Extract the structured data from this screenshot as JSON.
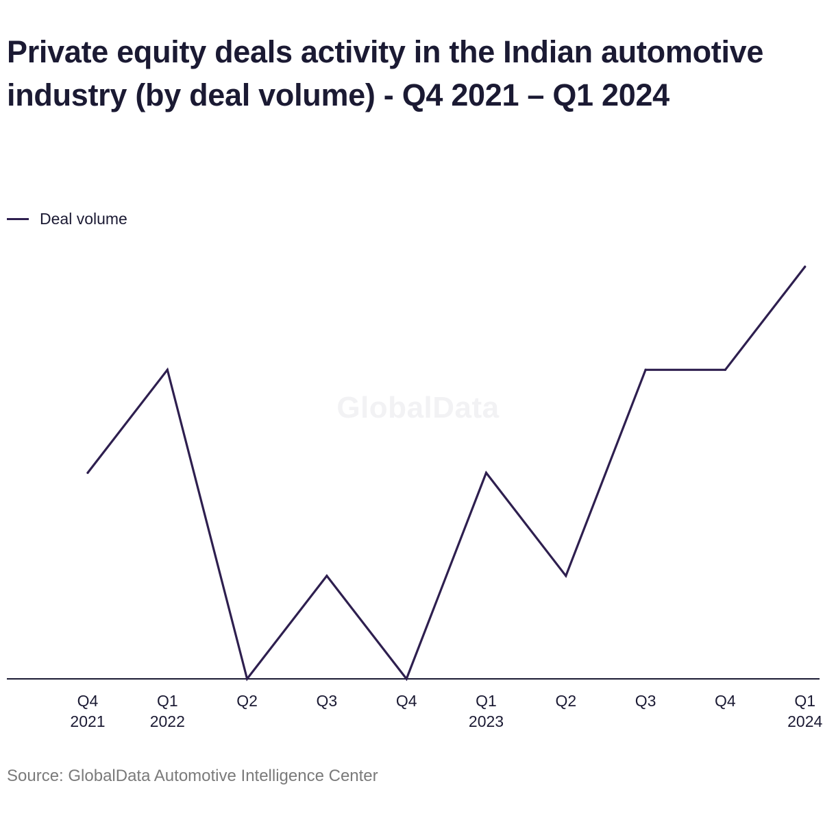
{
  "title": "Private equity deals activity in the Indian automotive industry (by deal volume) - Q4 2021 – Q1 2024",
  "watermark": "GlobalData",
  "source": "Source: GlobalData Automotive Intelligence Center",
  "colors": {
    "line": "#2e1f4f",
    "axis": "#1b1a33",
    "text": "#1b1a33",
    "source": "#7a7a7a"
  },
  "chart_data": {
    "type": "line",
    "title": "Private equity deals activity in the Indian automotive industry (by deal volume) - Q4 2021 – Q1 2024",
    "categories": [
      [
        "Q4",
        "2021"
      ],
      [
        "Q1",
        "2022"
      ],
      [
        "Q2",
        ""
      ],
      [
        "Q3",
        ""
      ],
      [
        "Q4",
        ""
      ],
      [
        "Q1",
        "2023"
      ],
      [
        "Q2",
        ""
      ],
      [
        "Q3",
        ""
      ],
      [
        "Q4",
        ""
      ],
      [
        "Q1",
        "2024"
      ]
    ],
    "series": [
      {
        "name": "Deal volume",
        "values": [
          2,
          3,
          0,
          1,
          0,
          2,
          1,
          3,
          3,
          4
        ]
      }
    ],
    "xlabel": "",
    "ylabel": "",
    "ylim": [
      0,
      4
    ],
    "grid": false,
    "legend": "top-left"
  }
}
